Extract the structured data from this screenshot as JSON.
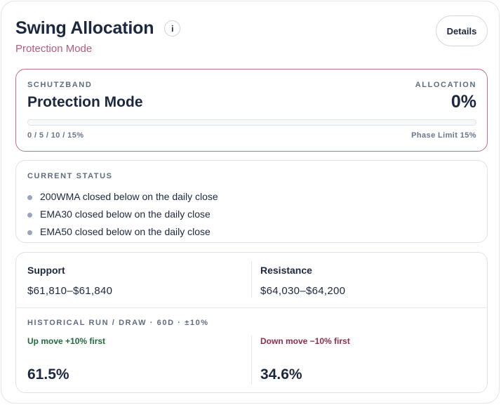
{
  "header": {
    "title": "Swing Allocation",
    "info_label": "i",
    "subtitle": "Protection Mode",
    "details_label": "Details"
  },
  "band": {
    "caption": "SCHUTZBAND",
    "mode": "Protection Mode",
    "allocation_caption": "ALLOCATION",
    "allocation_value": "0%",
    "allocation_fraction": 0,
    "steps": "0 / 5 / 10 / 15%",
    "phase_limit": "Phase Limit 15%"
  },
  "status": {
    "caption": "CURRENT STATUS",
    "items": [
      "200WMA closed below on the daily close",
      "EMA30 closed below on the daily close",
      "EMA50 closed below on the daily close"
    ]
  },
  "levels": {
    "support_label": "Support",
    "support_value": "$61,810–$61,840",
    "resistance_label": "Resistance",
    "resistance_value": "$64,030–$64,200"
  },
  "historical": {
    "caption": "HISTORICAL RUN / DRAW · 60D · ±10%",
    "up_label": "Up move +10% first",
    "up_value": "61.5%",
    "down_label": "Down move −10% first",
    "down_value": "34.6%"
  },
  "colors": {
    "accent": "#c0708d",
    "up": "#23683d",
    "down": "#8c2f48"
  }
}
